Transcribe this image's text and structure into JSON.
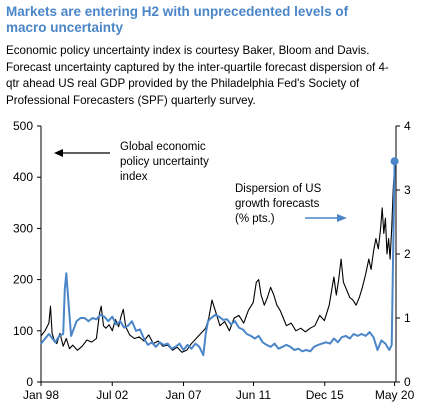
{
  "header": {
    "title_line1": "Markets are entering H2 with unprecedented levels of",
    "title_line2": "macro uncertainty",
    "subtitle_lines": [
      "Economic policy uncertainty index is courtesy Baker, Bloom and Davis.",
      "Forecast uncertainty captured by the inter-quartile forecast dispersion of 4-",
      "qtr ahead US real GDP provided by the Philadelphia Fed's Society of",
      "Professional Forecasters (SPF) quarterly survey."
    ]
  },
  "colors": {
    "epu_line": "#000000",
    "dispersion_line": "#4a86c8",
    "title": "#4a86c8"
  },
  "chart_data": {
    "type": "line",
    "x_tick_labels": [
      "Jan 98",
      "Jul 02",
      "Jan 07",
      "Jun 11",
      "Dec 15",
      "May 20"
    ],
    "x_tick_years": [
      1998.0,
      2002.5,
      2007.0,
      2011.42,
      2015.92,
      2020.33
    ],
    "xlim": [
      1998.0,
      2020.42
    ],
    "left_axis": {
      "ylim": [
        0,
        500
      ],
      "ticks": [
        "0",
        "100",
        "200",
        "300",
        "400",
        "500"
      ]
    },
    "right_axis": {
      "ylim": [
        0,
        4
      ],
      "ticks": [
        "0",
        "1",
        "2",
        "3",
        "4"
      ]
    },
    "annotations": {
      "epu_lines": [
        "Global economic",
        "policy uncertainty",
        "index"
      ],
      "dispersion_lines": [
        "Dispersion of US",
        "growth forecasts",
        "(% pts.)"
      ]
    },
    "series": [
      {
        "axis": "left",
        "points": [
          [
            1998.0,
            90
          ],
          [
            1998.25,
            100
          ],
          [
            1998.5,
            115
          ],
          [
            1998.6,
            148
          ],
          [
            1998.7,
            95
          ],
          [
            1998.85,
            80
          ],
          [
            1999.0,
            75
          ],
          [
            1999.2,
            95
          ],
          [
            1999.4,
            70
          ],
          [
            1999.6,
            85
          ],
          [
            1999.8,
            65
          ],
          [
            2000.0,
            72
          ],
          [
            2000.3,
            62
          ],
          [
            2000.6,
            70
          ],
          [
            2000.9,
            82
          ],
          [
            2001.2,
            78
          ],
          [
            2001.5,
            85
          ],
          [
            2001.7,
            135
          ],
          [
            2001.8,
            148
          ],
          [
            2001.95,
            110
          ],
          [
            2002.1,
            105
          ],
          [
            2002.3,
            112
          ],
          [
            2002.5,
            100
          ],
          [
            2002.7,
            122
          ],
          [
            2002.9,
            108
          ],
          [
            2003.05,
            128
          ],
          [
            2003.2,
            142
          ],
          [
            2003.35,
            108
          ],
          [
            2003.6,
            92
          ],
          [
            2003.9,
            85
          ],
          [
            2004.2,
            88
          ],
          [
            2004.5,
            80
          ],
          [
            2004.8,
            92
          ],
          [
            2005.1,
            75
          ],
          [
            2005.4,
            80
          ],
          [
            2005.7,
            70
          ],
          [
            2006.0,
            72
          ],
          [
            2006.3,
            62
          ],
          [
            2006.6,
            68
          ],
          [
            2006.9,
            58
          ],
          [
            2007.2,
            62
          ],
          [
            2007.5,
            75
          ],
          [
            2007.8,
            85
          ],
          [
            2008.1,
            95
          ],
          [
            2008.4,
            105
          ],
          [
            2008.6,
            125
          ],
          [
            2008.8,
            160
          ],
          [
            2008.95,
            145
          ],
          [
            2009.1,
            130
          ],
          [
            2009.3,
            110
          ],
          [
            2009.6,
            118
          ],
          [
            2009.9,
            100
          ],
          [
            2010.2,
            125
          ],
          [
            2010.5,
            130
          ],
          [
            2010.8,
            115
          ],
          [
            2011.1,
            140
          ],
          [
            2011.4,
            155
          ],
          [
            2011.6,
            195
          ],
          [
            2011.75,
            200
          ],
          [
            2011.9,
            170
          ],
          [
            2012.1,
            150
          ],
          [
            2012.3,
            165
          ],
          [
            2012.5,
            185
          ],
          [
            2012.7,
            170
          ],
          [
            2012.9,
            150
          ],
          [
            2013.1,
            140
          ],
          [
            2013.3,
            125
          ],
          [
            2013.5,
            110
          ],
          [
            2013.8,
            115
          ],
          [
            2014.1,
            100
          ],
          [
            2014.4,
            105
          ],
          [
            2014.7,
            98
          ],
          [
            2015.0,
            105
          ],
          [
            2015.3,
            110
          ],
          [
            2015.6,
            130
          ],
          [
            2015.9,
            120
          ],
          [
            2016.2,
            150
          ],
          [
            2016.5,
            205
          ],
          [
            2016.65,
            170
          ],
          [
            2016.8,
            200
          ],
          [
            2016.95,
            240
          ],
          [
            2017.1,
            195
          ],
          [
            2017.3,
            180
          ],
          [
            2017.5,
            165
          ],
          [
            2017.7,
            160
          ],
          [
            2017.9,
            150
          ],
          [
            2018.1,
            165
          ],
          [
            2018.3,
            185
          ],
          [
            2018.5,
            210
          ],
          [
            2018.7,
            240
          ],
          [
            2018.85,
            220
          ],
          [
            2019.0,
            255
          ],
          [
            2019.15,
            280
          ],
          [
            2019.3,
            260
          ],
          [
            2019.45,
            300
          ],
          [
            2019.55,
            340
          ],
          [
            2019.65,
            290
          ],
          [
            2019.75,
            320
          ],
          [
            2019.85,
            250
          ],
          [
            2019.95,
            280
          ],
          [
            2020.05,
            240
          ],
          [
            2020.15,
            300
          ],
          [
            2020.25,
            380
          ],
          [
            2020.33,
            420
          ]
        ]
      },
      {
        "axis": "right",
        "points": [
          [
            1998.0,
            0.6
          ],
          [
            1998.5,
            0.75
          ],
          [
            1998.9,
            0.62
          ],
          [
            1999.15,
            0.72
          ],
          [
            1999.4,
            0.75
          ],
          [
            1999.5,
            1.45
          ],
          [
            1999.6,
            1.7
          ],
          [
            1999.75,
            1.2
          ],
          [
            1999.9,
            0.72
          ],
          [
            2000.25,
            0.95
          ],
          [
            2000.5,
            1.0
          ],
          [
            2000.75,
            1.0
          ],
          [
            2001.0,
            0.95
          ],
          [
            2001.25,
            1.0
          ],
          [
            2001.5,
            0.98
          ],
          [
            2001.75,
            1.05
          ],
          [
            2002.0,
            1.02
          ],
          [
            2002.25,
            0.95
          ],
          [
            2002.5,
            1.02
          ],
          [
            2002.75,
            0.9
          ],
          [
            2003.0,
            0.95
          ],
          [
            2003.25,
            0.85
          ],
          [
            2003.5,
            0.88
          ],
          [
            2003.75,
            0.95
          ],
          [
            2004.0,
            0.8
          ],
          [
            2004.25,
            0.82
          ],
          [
            2004.5,
            0.68
          ],
          [
            2004.75,
            0.58
          ],
          [
            2005.0,
            0.62
          ],
          [
            2005.25,
            0.55
          ],
          [
            2005.5,
            0.62
          ],
          [
            2005.75,
            0.58
          ],
          [
            2006.0,
            0.6
          ],
          [
            2006.25,
            0.52
          ],
          [
            2006.5,
            0.55
          ],
          [
            2006.75,
            0.6
          ],
          [
            2007.0,
            0.5
          ],
          [
            2007.25,
            0.58
          ],
          [
            2007.5,
            0.52
          ],
          [
            2007.75,
            0.6
          ],
          [
            2008.0,
            0.55
          ],
          [
            2008.25,
            0.42
          ],
          [
            2008.4,
            0.75
          ],
          [
            2008.55,
            0.95
          ],
          [
            2008.75,
            1.0
          ],
          [
            2009.0,
            1.05
          ],
          [
            2009.25,
            1.02
          ],
          [
            2009.5,
            0.97
          ],
          [
            2009.75,
            0.98
          ],
          [
            2010.0,
            0.9
          ],
          [
            2010.25,
            0.95
          ],
          [
            2010.5,
            0.85
          ],
          [
            2010.75,
            0.82
          ],
          [
            2011.0,
            0.75
          ],
          [
            2011.25,
            0.72
          ],
          [
            2011.5,
            0.68
          ],
          [
            2011.75,
            0.72
          ],
          [
            2012.0,
            0.62
          ],
          [
            2012.25,
            0.58
          ],
          [
            2012.5,
            0.55
          ],
          [
            2012.75,
            0.6
          ],
          [
            2013.0,
            0.52
          ],
          [
            2013.25,
            0.55
          ],
          [
            2013.5,
            0.58
          ],
          [
            2013.75,
            0.55
          ],
          [
            2014.0,
            0.5
          ],
          [
            2014.25,
            0.52
          ],
          [
            2014.5,
            0.48
          ],
          [
            2014.75,
            0.5
          ],
          [
            2015.0,
            0.48
          ],
          [
            2015.25,
            0.55
          ],
          [
            2015.5,
            0.58
          ],
          [
            2015.75,
            0.6
          ],
          [
            2016.0,
            0.62
          ],
          [
            2016.25,
            0.6
          ],
          [
            2016.5,
            0.68
          ],
          [
            2016.75,
            0.62
          ],
          [
            2017.0,
            0.7
          ],
          [
            2017.25,
            0.72
          ],
          [
            2017.5,
            0.68
          ],
          [
            2017.75,
            0.75
          ],
          [
            2018.0,
            0.72
          ],
          [
            2018.25,
            0.75
          ],
          [
            2018.5,
            0.72
          ],
          [
            2018.75,
            0.78
          ],
          [
            2019.0,
            0.7
          ],
          [
            2019.25,
            0.5
          ],
          [
            2019.5,
            0.65
          ],
          [
            2019.75,
            0.6
          ],
          [
            2020.0,
            0.5
          ],
          [
            2020.15,
            0.58
          ],
          [
            2020.33,
            3.45
          ]
        ]
      }
    ]
  }
}
